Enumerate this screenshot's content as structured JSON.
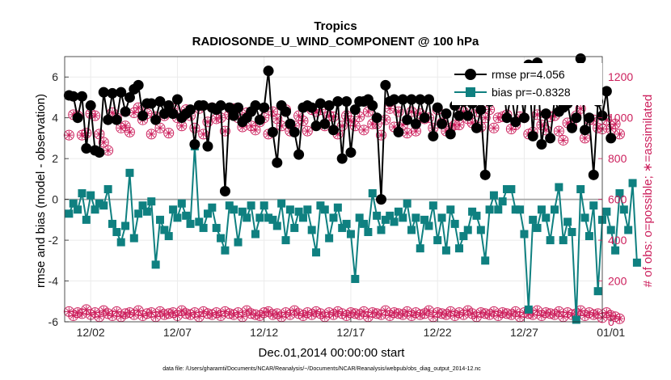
{
  "chart_data": {
    "type": "line",
    "title": "Tropics",
    "subtitle": "RADIOSONDE_U_WIND_COMPONENT @ 100 hPa",
    "xlabel": "Dec.01,2014 00:00:00 start",
    "ylabel_left": "rmse and bias (model - observation)",
    "ylabel_right": "# of obs: o=possible; ∗=assimilated",
    "ylim_left": [
      -6,
      7
    ],
    "ylim_right": [
      0,
      1300
    ],
    "xlim": [
      0.5,
      31.5
    ],
    "x_ticks": [
      2,
      7,
      12,
      17,
      22,
      27,
      32
    ],
    "x_tick_labels": [
      "12/02",
      "12/07",
      "12/12",
      "12/17",
      "12/22",
      "12/27",
      "01/01"
    ],
    "y_ticks_left": [
      -6,
      -4,
      -2,
      0,
      2,
      4,
      6
    ],
    "y_tick_labels_left": [
      "-6",
      "-4",
      "-2",
      "0",
      "2",
      "4",
      "6"
    ],
    "y_ticks_right": [
      0,
      200,
      400,
      600,
      800,
      1000,
      1200
    ],
    "y_tick_labels_right": [
      "0",
      "200",
      "400",
      "600",
      "800",
      "1000",
      "1200"
    ],
    "legend": [
      "rmse  pr=4.056",
      "bias  pr=-0.8328"
    ],
    "footnote": "data file: /Users/gharamti/Documents/NCAR/Reanalysis/~/Documents/NCAR/Reanalysis/webpub/obs_diag_output_2014-12.nc",
    "colors": {
      "rmse": "#000000",
      "bias": "#0f8080",
      "obs": "#cc1f5c",
      "zero": "#a6a6a6",
      "grid": "#ebebeb"
    },
    "series": [
      {
        "name": "rmse",
        "values": [
          5.1,
          5.05,
          4.0,
          5.05,
          2.5,
          4.6,
          2.4,
          2.3,
          5.25,
          3.9,
          5.2,
          3.9,
          5.25,
          4.3,
          5.0,
          5.4,
          5.6,
          4.1,
          4.7,
          4.7,
          3.9,
          4.8,
          4.2,
          4.6,
          4.2,
          4.9,
          4.0,
          4.2,
          4.4,
          2.7,
          4.6,
          4.6,
          2.6,
          4.5,
          4.4,
          4.6,
          0.4,
          4.5,
          4.1,
          4.5,
          3.8,
          4.0,
          4.3,
          4.6,
          3.9,
          4.5,
          6.3,
          3.3,
          1.8,
          4.6,
          4.3,
          3.7,
          3.3,
          2.2,
          4.5,
          4.6,
          4.5,
          3.6,
          4.7,
          3.7,
          4.6,
          3.4,
          4.8,
          2.0,
          4.8,
          2.3,
          4.4,
          4.8,
          4.8,
          4.9,
          4.6,
          4.0,
          0.0,
          5.6,
          4.8,
          4.9,
          3.3,
          4.9,
          3.9,
          4.9,
          3.7,
          4.9,
          4.0,
          4.9,
          3.1,
          4.5,
          3.7,
          4.2,
          3.2,
          4.6,
          4.1,
          4.8,
          4.1,
          4.7,
          3.5,
          4.4,
          1.2,
          4.8,
          5.0,
          5.2,
          6.1,
          4.0,
          5.2,
          3.8,
          5.6,
          4.0,
          6.6,
          3.1,
          6.7,
          2.7,
          4.2,
          3.0,
          4.9,
          4.3,
          4.5,
          4.7,
          3.5,
          4.0,
          6.9,
          3.4,
          4.0,
          1.2,
          4.8,
          4.1,
          5.3,
          3.0
        ],
        "status": "valid"
      },
      {
        "name": "bias",
        "values": [
          -0.7,
          -0.2,
          -0.5,
          0.3,
          -1.0,
          0.2,
          -0.5,
          -0.2,
          -0.3,
          0.5,
          -1.2,
          -1.6,
          -2.1,
          -1.3,
          1.3,
          -1.9,
          -0.7,
          -0.3,
          -0.6,
          -0.1,
          -3.2,
          -1.0,
          -1.5,
          -1.8,
          -0.5,
          -0.9,
          -0.2,
          -0.8,
          -1.2,
          2.6,
          -1.1,
          -1.4,
          -0.7,
          -0.4,
          -1.4,
          -1.9,
          -2.5,
          -0.3,
          -0.5,
          -2.1,
          -0.6,
          -0.9,
          -0.3,
          -1.7,
          -0.9,
          -0.3,
          -0.9,
          -1.0,
          -1.3,
          -0.2,
          -2.0,
          -0.5,
          -1.4,
          -0.6,
          -0.9,
          -0.5,
          -1.5,
          -2.6,
          -0.3,
          -0.5,
          -1.9,
          -0.9,
          -0.4,
          -1.4,
          -1.2,
          -1.7,
          -3.9,
          -0.9,
          -1.2,
          -1.6,
          0.3,
          -0.8,
          -1.5,
          -1.0,
          -0.8,
          -1.1,
          -0.6,
          -0.9,
          -0.2,
          -1.5,
          -0.9,
          -2.4,
          -1.0,
          -1.3,
          -0.3,
          -2.0,
          -0.9,
          -2.5,
          -0.5,
          -1.2,
          -2.4,
          -1.8,
          -1.5,
          -0.6,
          -0.8,
          -1.5,
          -3.0,
          -0.5,
          0.2,
          -0.5,
          -0.1,
          0.5,
          0.5,
          -0.5,
          -0.5,
          -1.7,
          -5.4,
          -1.0,
          -1.4,
          -0.5,
          -0.9,
          -2.0,
          -0.5,
          0.6,
          -2.0,
          -1.1,
          -1.6,
          -5.9,
          0.5,
          -0.9,
          -1.8,
          -0.3,
          -4.5,
          -1.0,
          -0.6,
          -1.5,
          -2.5,
          0.3,
          -0.5,
          -1.5,
          0.8,
          -3.1
        ],
        "status": "valid"
      },
      {
        "name": "obs_possible",
        "values": [
          915,
          1015,
          1010,
          915,
          925,
          1020,
          1010,
          920,
          880,
          840,
          1025,
          1000,
          950,
          960,
          930,
          1025,
          1050,
          990,
          1020,
          920,
          1005,
          950,
          1010,
          925,
          1045,
          1000,
          960,
          1040,
          1010,
          950,
          1045,
          920,
          980,
          1050,
          995,
          1000,
          935,
          1015,
          1045,
          1000,
          955,
          1025,
          960,
          940,
          980,
          1000,
          920,
          1030,
          995,
          960,
          1040,
          935,
          960,
          1010,
          985,
          935,
          1040,
          1030,
          1040,
          960,
          1010,
          1005,
          920,
          960,
          1010,
          985,
          960,
          1005,
          940,
          1030,
          970,
          970,
          915,
          990,
          1045,
          955,
          1030,
          965,
          925,
          1030,
          935,
          1020,
          995,
          1000,
          950,
          1040,
          975,
          935,
          950,
          965,
          965,
          1030,
          995,
          975,
          1030,
          955,
          1000,
          1040,
          950,
          1000,
          1005,
          1015,
          945,
          965,
          1005,
          1000,
          920,
          930,
          1015,
          965,
          940,
          1005,
          1010,
          935,
          890,
          975,
          960,
          1010,
          1045,
          900,
          990,
          990,
          950,
          945,
          990,
          945,
          970,
          920
        ],
        "status": "possible"
      },
      {
        "name": "obs_low",
        "values": [
          50,
          30,
          45,
          40,
          60,
          35,
          45,
          25,
          55,
          40,
          30,
          50,
          25,
          40,
          45,
          35,
          55,
          30,
          40,
          45,
          25,
          50,
          35,
          40,
          45,
          30,
          55,
          40,
          35,
          45,
          25,
          50,
          40,
          35,
          45,
          30,
          50,
          40,
          35,
          45,
          25,
          55,
          40,
          35,
          30,
          45,
          50,
          35,
          40,
          25,
          45,
          35,
          55,
          40,
          30,
          45,
          35,
          50,
          40,
          25,
          45,
          35,
          50,
          40,
          30,
          45,
          40,
          35,
          50,
          25,
          45,
          40,
          35,
          55,
          30,
          45,
          40,
          35,
          50,
          30,
          45,
          35,
          40,
          55,
          25,
          45,
          40,
          35,
          50,
          30,
          45,
          35,
          55,
          40,
          25,
          45,
          40,
          35,
          50,
          30,
          45,
          40,
          35,
          50,
          25,
          45,
          40,
          35,
          55,
          30,
          45,
          40,
          35,
          50,
          25,
          45,
          35,
          40,
          55,
          30,
          45,
          35,
          40,
          20,
          45,
          30,
          25,
          15
        ],
        "status": "few"
      }
    ]
  }
}
